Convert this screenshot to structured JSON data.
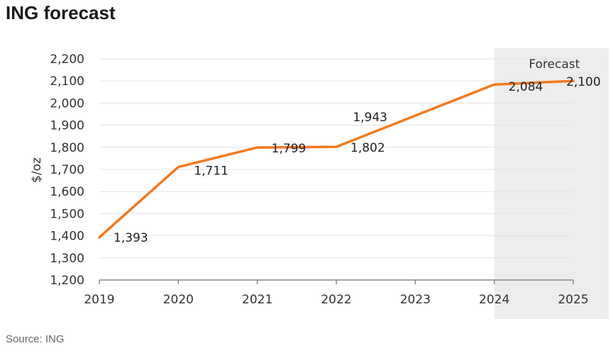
{
  "title": "ING forecast",
  "source": "Source: ING",
  "colors": {
    "line": "#f47920",
    "forecast_band": "#ededed",
    "grid": "#e3e3e3",
    "axis": "#888888"
  },
  "chart_data": {
    "type": "line",
    "title": "ING forecast",
    "xlabel": "",
    "ylabel": "$/oz",
    "ylim": [
      1200,
      2200
    ],
    "yticks": [
      1200,
      1300,
      1400,
      1500,
      1600,
      1700,
      1800,
      1900,
      2000,
      2100,
      2200
    ],
    "ytick_labels": [
      "1,200",
      "1,300",
      "1,400",
      "1,500",
      "1,600",
      "1,700",
      "1,800",
      "1,900",
      "2,000",
      "2,100",
      "2,200"
    ],
    "x": [
      2019,
      2020,
      2021,
      2022,
      2023,
      2024,
      2025
    ],
    "xtick_labels": [
      "2019",
      "2020",
      "2021",
      "2022",
      "2023",
      "2024",
      "2025"
    ],
    "grid": true,
    "series": [
      {
        "values": [
          1393,
          1711,
          1799,
          1802,
          1943,
          2084,
          2100
        ],
        "data_labels": [
          "1,393",
          "1,711",
          "1,799",
          "1,802",
          "1,943",
          "2,084",
          "2,100"
        ]
      }
    ],
    "forecast_region": {
      "label": "Forecast",
      "from": 2024,
      "to": 2025
    }
  }
}
